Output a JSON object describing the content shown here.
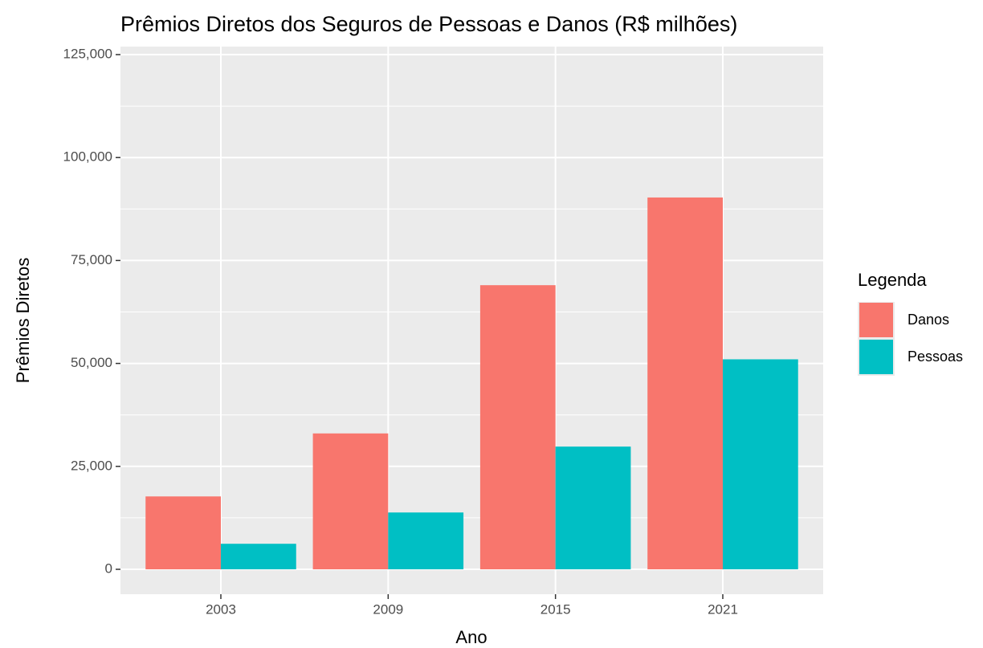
{
  "chart_data": {
    "type": "bar",
    "title": "Prêmios Diretos dos Seguros de Pessoas e Danos (R$ milhões)",
    "x_label": "Ano",
    "y_label": "Prêmios Diretos",
    "categories": [
      "2003",
      "2009",
      "2015",
      "2021"
    ],
    "series": [
      {
        "name": "Danos",
        "color": "#f8766d",
        "values": [
          17700,
          33000,
          69000,
          90300
        ]
      },
      {
        "name": "Pessoas",
        "color": "#00bfc4",
        "values": [
          6200,
          13800,
          29800,
          51000
        ]
      }
    ],
    "legend_title": "Legenda",
    "legend": "right",
    "ylim": [
      -6045,
      126950
    ],
    "yticks": [
      0,
      {
        "value": 25000,
        "label": "25,000"
      },
      {
        "value": 50000,
        "label": "50,000"
      },
      {
        "value": 75000,
        "label": "75,000"
      },
      {
        "value": 100000,
        "label": "100,000"
      },
      {
        "value": 125000,
        "label": "125,000"
      }
    ],
    "grid": true
  }
}
